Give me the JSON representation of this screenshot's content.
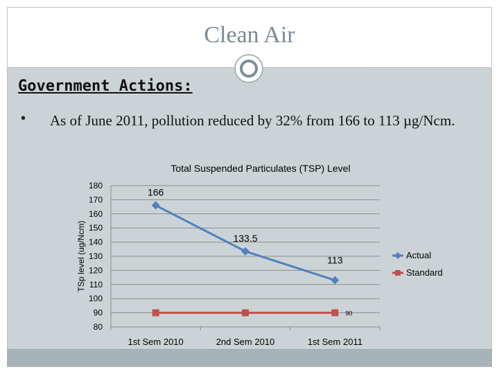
{
  "slide": {
    "title": "Clean Air",
    "heading": "Government Actions:",
    "bullet_marker": "•",
    "bullet_text": "As of June 2011, pollution reduced by 32% from 166 to 113 µg/Ncm."
  },
  "colors": {
    "actual": "#4f81bd",
    "standard": "#c0504d",
    "gridline": "#8c8c8c"
  },
  "chart_data": {
    "type": "line",
    "title": "Total Suspended Particulates (TSP) Level",
    "xlabel": "",
    "ylabel": "TSp level (ug/Ncm)",
    "categories": [
      "1st Sem 2010",
      "2nd Sem 2010",
      "1st Sem 2011"
    ],
    "ylim": [
      80,
      180
    ],
    "yticks": [
      80,
      90,
      100,
      110,
      120,
      130,
      140,
      150,
      160,
      170,
      180
    ],
    "grid": true,
    "legend_position": "right",
    "series": [
      {
        "name": "Actual",
        "values": [
          166,
          133.5,
          113
        ],
        "labels": [
          "166",
          "133.5",
          "113"
        ],
        "marker": "diamond"
      },
      {
        "name": "Standard",
        "values": [
          90,
          90,
          90
        ],
        "labels": [
          "",
          "",
          "90"
        ],
        "marker": "square"
      }
    ]
  }
}
